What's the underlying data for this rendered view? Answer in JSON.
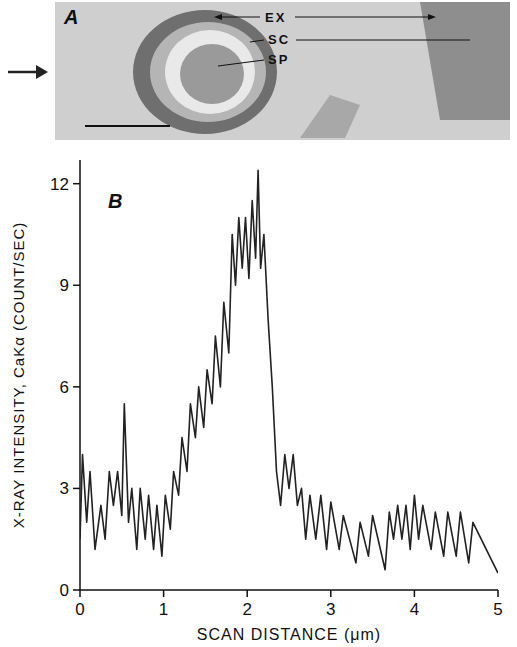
{
  "figure_a": {
    "letter": "A",
    "labels": [
      "EX",
      "SC",
      "SP"
    ]
  },
  "chart_data": {
    "type": "line",
    "annotations": [
      "B"
    ],
    "x_label": "SCAN DISTANCE (μm)",
    "y_label": "X-RAY INTENSITY, CaKα (COUNT/SEC)",
    "x": [
      0.0,
      0.03,
      0.08,
      0.12,
      0.18,
      0.25,
      0.3,
      0.35,
      0.4,
      0.45,
      0.5,
      0.53,
      0.58,
      0.62,
      0.68,
      0.72,
      0.78,
      0.82,
      0.88,
      0.92,
      0.98,
      1.02,
      1.08,
      1.12,
      1.18,
      1.22,
      1.28,
      1.32,
      1.38,
      1.42,
      1.48,
      1.52,
      1.58,
      1.62,
      1.68,
      1.72,
      1.78,
      1.82,
      1.86,
      1.9,
      1.94,
      1.98,
      2.02,
      2.06,
      2.1,
      2.13,
      2.16,
      2.2,
      2.25,
      2.3,
      2.35,
      2.4,
      2.45,
      2.5,
      2.55,
      2.6,
      2.65,
      2.7,
      2.75,
      2.82,
      2.88,
      2.95,
      3.0,
      3.1,
      3.15,
      3.3,
      3.35,
      3.45,
      3.5,
      3.65,
      3.7,
      3.75,
      3.8,
      3.85,
      3.9,
      3.95,
      4.0,
      4.05,
      4.1,
      4.2,
      4.25,
      4.35,
      4.4,
      4.5,
      4.55,
      4.65,
      4.7,
      5.0
    ],
    "series": [
      {
        "name": "CaKα",
        "color": "#222222",
        "values": [
          1.5,
          4.0,
          2.0,
          3.5,
          1.2,
          2.5,
          1.5,
          3.5,
          2.5,
          3.5,
          2.2,
          5.5,
          2.0,
          3.0,
          1.2,
          3.0,
          1.5,
          2.8,
          1.2,
          2.5,
          1.0,
          2.8,
          1.8,
          3.5,
          2.8,
          4.5,
          3.5,
          5.5,
          4.5,
          6.0,
          4.8,
          6.5,
          5.5,
          7.5,
          6.0,
          8.5,
          7.0,
          10.5,
          9.0,
          11.0,
          9.5,
          11.0,
          9.2,
          11.5,
          9.8,
          12.4,
          9.5,
          10.5,
          8.0,
          6.0,
          3.5,
          2.5,
          4.0,
          3.0,
          4.0,
          2.5,
          3.0,
          1.5,
          2.8,
          1.5,
          2.8,
          1.2,
          2.6,
          1.2,
          2.2,
          0.8,
          2.0,
          1.0,
          2.2,
          0.6,
          2.3,
          1.5,
          2.5,
          1.5,
          2.5,
          1.2,
          2.8,
          1.5,
          2.5,
          1.2,
          2.3,
          1.0,
          2.3,
          1.0,
          2.3,
          0.8,
          2.0,
          0.5
        ]
      }
    ],
    "xlim": [
      0,
      5
    ],
    "ylim": [
      0,
      12.7
    ],
    "xticks": [
      0,
      1,
      2,
      3,
      4,
      5
    ],
    "yticks": [
      0,
      3,
      6,
      9,
      12
    ],
    "grid": false
  }
}
